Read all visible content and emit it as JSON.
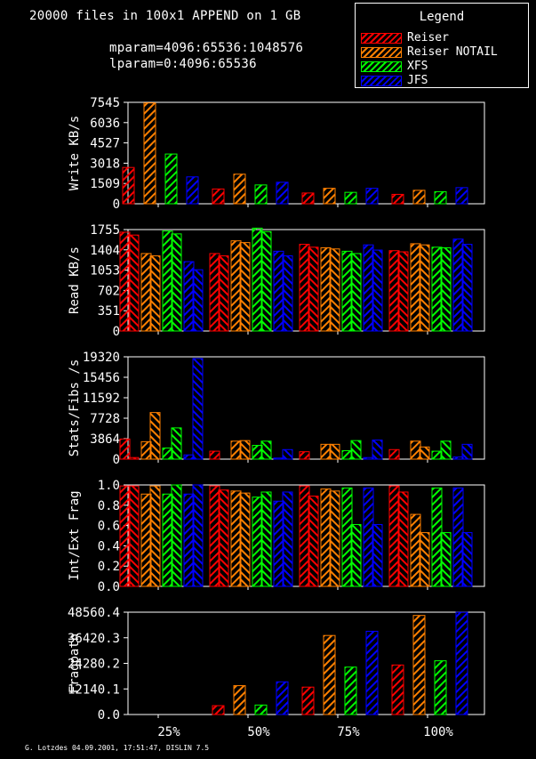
{
  "header": {
    "title": "20000 files in 100x1 APPEND on 1 GB",
    "mparam": "mparam=4096:65536:1048576",
    "lparam": "lparam=0:4096:65536"
  },
  "legend": {
    "title": "Legend",
    "placement": "top-right",
    "items": [
      {
        "label": "Reiser",
        "color": "#ff0000"
      },
      {
        "label": "Reiser NOTAIL",
        "color": "#ff8000"
      },
      {
        "label": "XFS",
        "color": "#00ff00"
      },
      {
        "label": "JFS",
        "color": "#0000ff"
      }
    ]
  },
  "footer": "G. Lotzdes 04.09.2001, 17:51:47, DISLIN 7.5",
  "chart_data": [
    {
      "type": "bar",
      "ylabel": "Write KB/s",
      "categories": [
        "25%",
        "50%",
        "75%",
        "100%"
      ],
      "ylim": [
        0,
        7545
      ],
      "yticks": [
        "0",
        "1509",
        "3018",
        "4527",
        "6036",
        "7545"
      ],
      "series": [
        {
          "name": "Reiser",
          "values": [
            2700,
            1100,
            800,
            700
          ]
        },
        {
          "name": "Reiser NOTAIL",
          "values": [
            7500,
            2200,
            1150,
            1000
          ]
        },
        {
          "name": "XFS",
          "values": [
            3700,
            1400,
            850,
            900
          ]
        },
        {
          "name": "JFS",
          "values": [
            2000,
            1600,
            1150,
            1200
          ]
        }
      ]
    },
    {
      "type": "bar",
      "ylabel": "Read KB/s",
      "categories": [
        "25%",
        "50%",
        "75%",
        "100%"
      ],
      "ylim": [
        0,
        1755
      ],
      "yticks": [
        "0",
        "351",
        "702",
        "1053",
        "1404",
        "1755"
      ],
      "series": [
        {
          "name": "Reiser",
          "values": [
            [
              1710,
              1660
            ],
            [
              1340,
              1300
            ],
            [
              1500,
              1450
            ],
            [
              1390,
              1370
            ]
          ]
        },
        {
          "name": "Reiser NOTAIL",
          "values": [
            [
              1340,
              1300
            ],
            [
              1560,
              1530
            ],
            [
              1440,
              1420
            ],
            [
              1510,
              1490
            ]
          ]
        },
        {
          "name": "XFS",
          "values": [
            [
              1730,
              1680
            ],
            [
              1780,
              1720
            ],
            [
              1380,
              1340
            ],
            [
              1450,
              1440
            ]
          ]
        },
        {
          "name": "JFS",
          "values": [
            [
              1200,
              1060
            ],
            [
              1380,
              1300
            ],
            [
              1490,
              1400
            ],
            [
              1590,
              1500
            ]
          ]
        }
      ]
    },
    {
      "type": "bar",
      "ylabel": "Stats/Fibs /s",
      "categories": [
        "25%",
        "50%",
        "75%",
        "100%"
      ],
      "ylim": [
        0,
        19320
      ],
      "yticks": [
        "0",
        "3864",
        "7728",
        "11592",
        "15456",
        "19320"
      ],
      "series": [
        {
          "name": "Reiser",
          "values": [
            [
              3800,
              300
            ],
            [
              1500,
              0
            ],
            [
              1400,
              0
            ],
            [
              1800,
              0
            ]
          ]
        },
        {
          "name": "Reiser NOTAIL",
          "values": [
            [
              3300,
              8800
            ],
            [
              3400,
              3500
            ],
            [
              2800,
              2800
            ],
            [
              3400,
              2300
            ]
          ]
        },
        {
          "name": "XFS",
          "values": [
            [
              2100,
              5900
            ],
            [
              2600,
              3400
            ],
            [
              1600,
              3500
            ],
            [
              1500,
              3400
            ]
          ]
        },
        {
          "name": "JFS",
          "values": [
            [
              800,
              19000
            ],
            [
              200,
              1800
            ],
            [
              300,
              3600
            ],
            [
              400,
              2800
            ]
          ]
        }
      ]
    },
    {
      "type": "bar",
      "ylabel": "Int/Ext Frag",
      "categories": [
        "25%",
        "50%",
        "75%",
        "100%"
      ],
      "ylim": [
        0,
        1.0
      ],
      "yticks": [
        "0.0",
        "0.2",
        "0.4",
        "0.6",
        "0.8",
        "1.0"
      ],
      "series": [
        {
          "name": "Reiser",
          "values": [
            [
              0.99,
              0.99
            ],
            [
              0.99,
              0.95
            ],
            [
              0.99,
              0.89
            ],
            [
              0.99,
              0.93
            ]
          ]
        },
        {
          "name": "Reiser NOTAIL",
          "values": [
            [
              0.91,
              0.99
            ],
            [
              0.94,
              0.92
            ],
            [
              0.96,
              0.94
            ],
            [
              0.71,
              0.53
            ]
          ]
        },
        {
          "name": "XFS",
          "values": [
            [
              0.91,
              1.0
            ],
            [
              0.88,
              0.93
            ],
            [
              0.97,
              0.61
            ],
            [
              0.97,
              0.53
            ]
          ]
        },
        {
          "name": "JFS",
          "values": [
            [
              0.91,
              1.0
            ],
            [
              0.84,
              0.93
            ],
            [
              0.97,
              0.61
            ],
            [
              0.97,
              0.53
            ]
          ]
        }
      ]
    },
    {
      "type": "bar",
      "ylabel": "Fragpath",
      "categories": [
        "25%",
        "50%",
        "75%",
        "100%"
      ],
      "ylim": [
        0,
        48560.4
      ],
      "yticks": [
        "0.0",
        "12140.1",
        "24280.2",
        "36420.3",
        "48560.4"
      ],
      "series": [
        {
          "name": "Reiser",
          "values": [
            0,
            4200,
            13000,
            23500
          ]
        },
        {
          "name": "Reiser NOTAIL",
          "values": [
            0,
            13700,
            37500,
            47000
          ]
        },
        {
          "name": "XFS",
          "values": [
            0,
            4500,
            22500,
            25500
          ]
        },
        {
          "name": "JFS",
          "values": [
            0,
            15500,
            39500,
            48500
          ]
        }
      ]
    }
  ]
}
